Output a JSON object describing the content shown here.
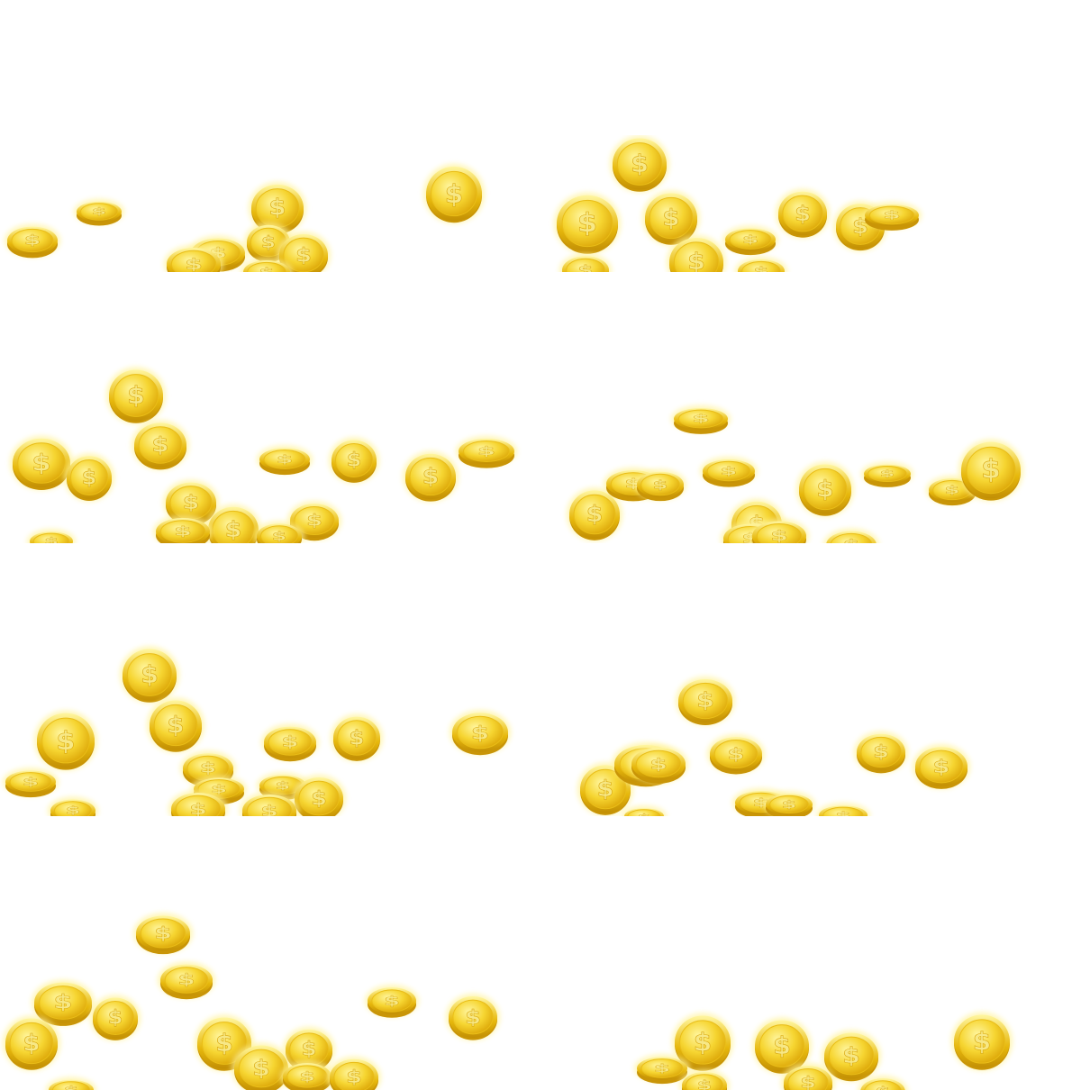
{
  "image": {
    "description_tag": "coin-sprite-sheet",
    "frame_count": 8,
    "grid": {
      "columns": 2,
      "rows": 4
    },
    "coin_symbol": "$",
    "background_color": "#ffffff",
    "coin_colors": {
      "rim": "#e7b80c",
      "face_light": "#fff6a0",
      "face_mid": "#f6d531",
      "face_dark": "#dca607",
      "glow": "#fff39a",
      "symbol": "#f7e886"
    }
  }
}
